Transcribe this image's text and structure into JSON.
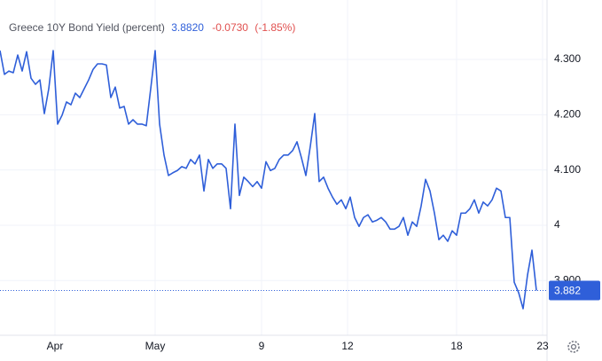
{
  "chart_data": {
    "type": "line",
    "title": "Greece 10Y Bond Yield (percent)",
    "last": "3.8820",
    "change": "-0.0730",
    "change_percent": "(-1.85%)",
    "last_value_label": "3.882",
    "series": [
      {
        "name": "Greece 10Y Bond Yield",
        "color": "#2f5fd9",
        "values": [
          4.316,
          4.273,
          4.279,
          4.276,
          4.308,
          4.279,
          4.314,
          4.266,
          4.255,
          4.263,
          4.202,
          4.247,
          4.316,
          4.183,
          4.199,
          4.223,
          4.218,
          4.239,
          4.231,
          4.247,
          4.263,
          4.282,
          4.292,
          4.292,
          4.29,
          4.231,
          4.25,
          4.212,
          4.215,
          4.183,
          4.191,
          4.183,
          4.183,
          4.18,
          4.247,
          4.316,
          4.183,
          4.127,
          4.09,
          4.095,
          4.099,
          4.106,
          4.103,
          4.119,
          4.111,
          4.127,
          4.062,
          4.119,
          4.103,
          4.111,
          4.111,
          4.103,
          4.03,
          4.183,
          4.054,
          4.087,
          4.079,
          4.07,
          4.079,
          4.067,
          4.115,
          4.099,
          4.103,
          4.119,
          4.127,
          4.127,
          4.135,
          4.151,
          4.122,
          4.09,
          4.143,
          4.202,
          4.079,
          4.087,
          4.067,
          4.051,
          4.038,
          4.046,
          4.03,
          4.051,
          4.014,
          3.998,
          4.014,
          4.019,
          4.006,
          4.009,
          4.014,
          4.006,
          3.993,
          3.993,
          3.998,
          4.014,
          3.982,
          4.006,
          3.998,
          4.035,
          4.083,
          4.062,
          4.022,
          3.974,
          3.982,
          3.971,
          3.99,
          3.982,
          4.022,
          4.022,
          4.03,
          4.046,
          4.022,
          4.042,
          4.035,
          4.046,
          4.067,
          4.062,
          4.014,
          4.014,
          3.897,
          3.878,
          3.849,
          3.91,
          3.955,
          3.882
        ]
      }
    ],
    "xlim": [
      0,
      123.4
    ],
    "xticks": [
      {
        "value": 12.4,
        "label": "Apr"
      },
      {
        "value": 35,
        "label": "May"
      },
      {
        "value": 59,
        "label": "9"
      },
      {
        "value": 78.4,
        "label": "12"
      },
      {
        "value": 103,
        "label": "18"
      },
      {
        "value": 122.4,
        "label": "23"
      }
    ],
    "ylim": [
      3.801,
      4.4075
    ],
    "yticks": [
      {
        "value": 3.9,
        "label": "3.900"
      },
      4,
      {
        "value": 4.1,
        "label": "4.100"
      },
      {
        "value": 4.2,
        "label": "4.200"
      },
      {
        "value": 4.3,
        "label": "4.300"
      }
    ],
    "grid": true
  }
}
